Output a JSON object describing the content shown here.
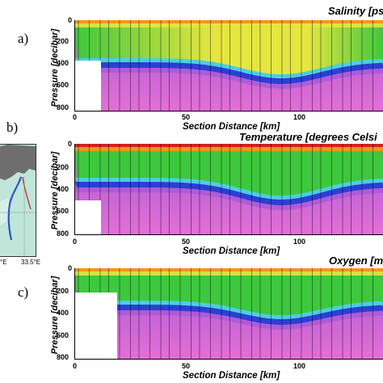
{
  "panels": [
    {
      "label": "a)",
      "title": "Salinity [ps",
      "ylabel": "Pressure [decibar]",
      "xlabel": "Section Distance [km]",
      "yticks": [
        "0",
        "200",
        "400",
        "600",
        "800"
      ],
      "xticks": [
        "0",
        "50",
        "100"
      ],
      "hasTopCap": false
    },
    {
      "label": "b)",
      "title": "Temperature [degrees Celsi",
      "ylabel": "Pressure [decibar]",
      "xlabel": "Section Distance [km]",
      "yticks": [
        "0",
        "200",
        "400",
        "600",
        "800"
      ],
      "xticks": [
        "0",
        "50",
        "100"
      ],
      "hasTopCap": true
    },
    {
      "label": "c)",
      "title": "Oxygen [m",
      "ylabel": "Pressure [decibar]",
      "xlabel": "Section Distance [km]",
      "yticks": [
        "0",
        "200",
        "400",
        "600",
        "800"
      ],
      "xticks": [
        "0",
        "50",
        "100"
      ],
      "hasTopCap": false
    }
  ],
  "map": {
    "ticks": [
      "°E",
      "33.5°E"
    ]
  },
  "chart_data": [
    {
      "type": "heatmap",
      "title": "Salinity [ps",
      "ylabel": "Pressure [decibar]",
      "xlabel": "Section Distance [km]",
      "ylim": [
        800,
        0
      ],
      "xlim": [
        0,
        140
      ]
    },
    {
      "type": "heatmap",
      "title": "Temperature [degrees Celsi",
      "ylabel": "Pressure [decibar]",
      "xlabel": "Section Distance [km]",
      "ylim": [
        800,
        0
      ],
      "xlim": [
        0,
        140
      ]
    },
    {
      "type": "heatmap",
      "title": "Oxygen [m",
      "ylabel": "Pressure [decibar]",
      "xlabel": "Section Distance [km]",
      "ylim": [
        800,
        0
      ],
      "xlim": [
        0,
        140
      ]
    }
  ],
  "colors": {
    "red": "#d81f1f",
    "orange": "#f7941d",
    "yellow": "#e6e640",
    "green": "#3ec83e",
    "cyan": "#4ccfe0",
    "blue": "#2b3fd6",
    "purple": "#a85ad8",
    "magenta": "#e36fd6"
  }
}
